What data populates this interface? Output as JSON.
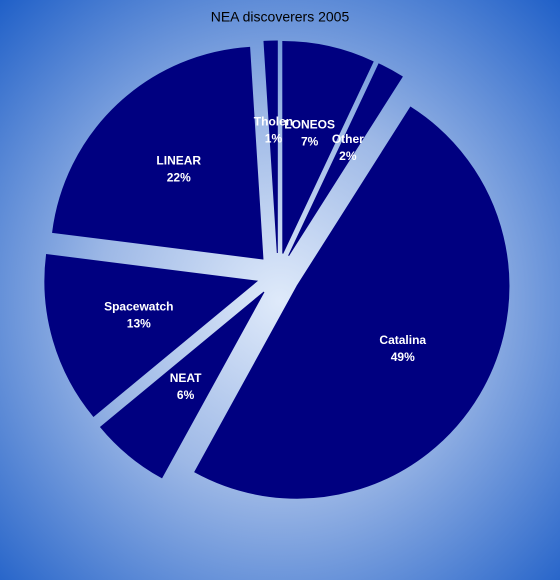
{
  "chart_data": {
    "type": "pie",
    "title": "NEA discoverers 2005",
    "categories": [
      "LONEOS",
      "Other",
      "Catalina",
      "NEAT",
      "Spacewatch",
      "LINEAR",
      "Tholen"
    ],
    "values": [
      7,
      2,
      49,
      6,
      13,
      22,
      1
    ],
    "value_labels": [
      "7%",
      "2%",
      "49%",
      "6%",
      "13%",
      "22%",
      "1%"
    ],
    "color": "#000080"
  }
}
